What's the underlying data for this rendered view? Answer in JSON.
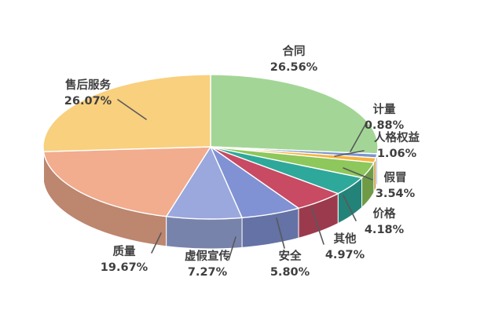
{
  "chart_data": {
    "type": "pie",
    "style": "3d",
    "title": "",
    "start_angle_deg": 0,
    "direction": "clockwise",
    "legend": "none",
    "background": "#FFFFFF",
    "label_text_color": "#3F3F3F",
    "leader_line_color": "#58595B",
    "slices": [
      {
        "label": "合同",
        "value": 26.56,
        "pct_label": "26.56%",
        "color": "#A3D696"
      },
      {
        "label": "计量",
        "value": 0.88,
        "pct_label": "0.88%",
        "color": "#7B94CE"
      },
      {
        "label": "人格权益",
        "value": 1.06,
        "pct_label": "1.06%",
        "color": "#F6B33C"
      },
      {
        "label": "假冒",
        "value": 3.54,
        "pct_label": "3.54%",
        "color": "#8EC75B"
      },
      {
        "label": "价格",
        "value": 4.18,
        "pct_label": "4.18%",
        "color": "#2EA89A"
      },
      {
        "label": "其他",
        "value": 4.97,
        "pct_label": "4.97%",
        "color": "#C84A63"
      },
      {
        "label": "安全",
        "value": 5.8,
        "pct_label": "5.80%",
        "color": "#8092D4"
      },
      {
        "label": "虚假宣传",
        "value": 7.27,
        "pct_label": "7.27%",
        "color": "#9AA8DD"
      },
      {
        "label": "质量",
        "value": 19.67,
        "pct_label": "19.67%",
        "color": "#F2AC8E"
      },
      {
        "label": "售后服务",
        "value": 26.07,
        "pct_label": "26.07%",
        "color": "#F8D07E"
      }
    ]
  }
}
